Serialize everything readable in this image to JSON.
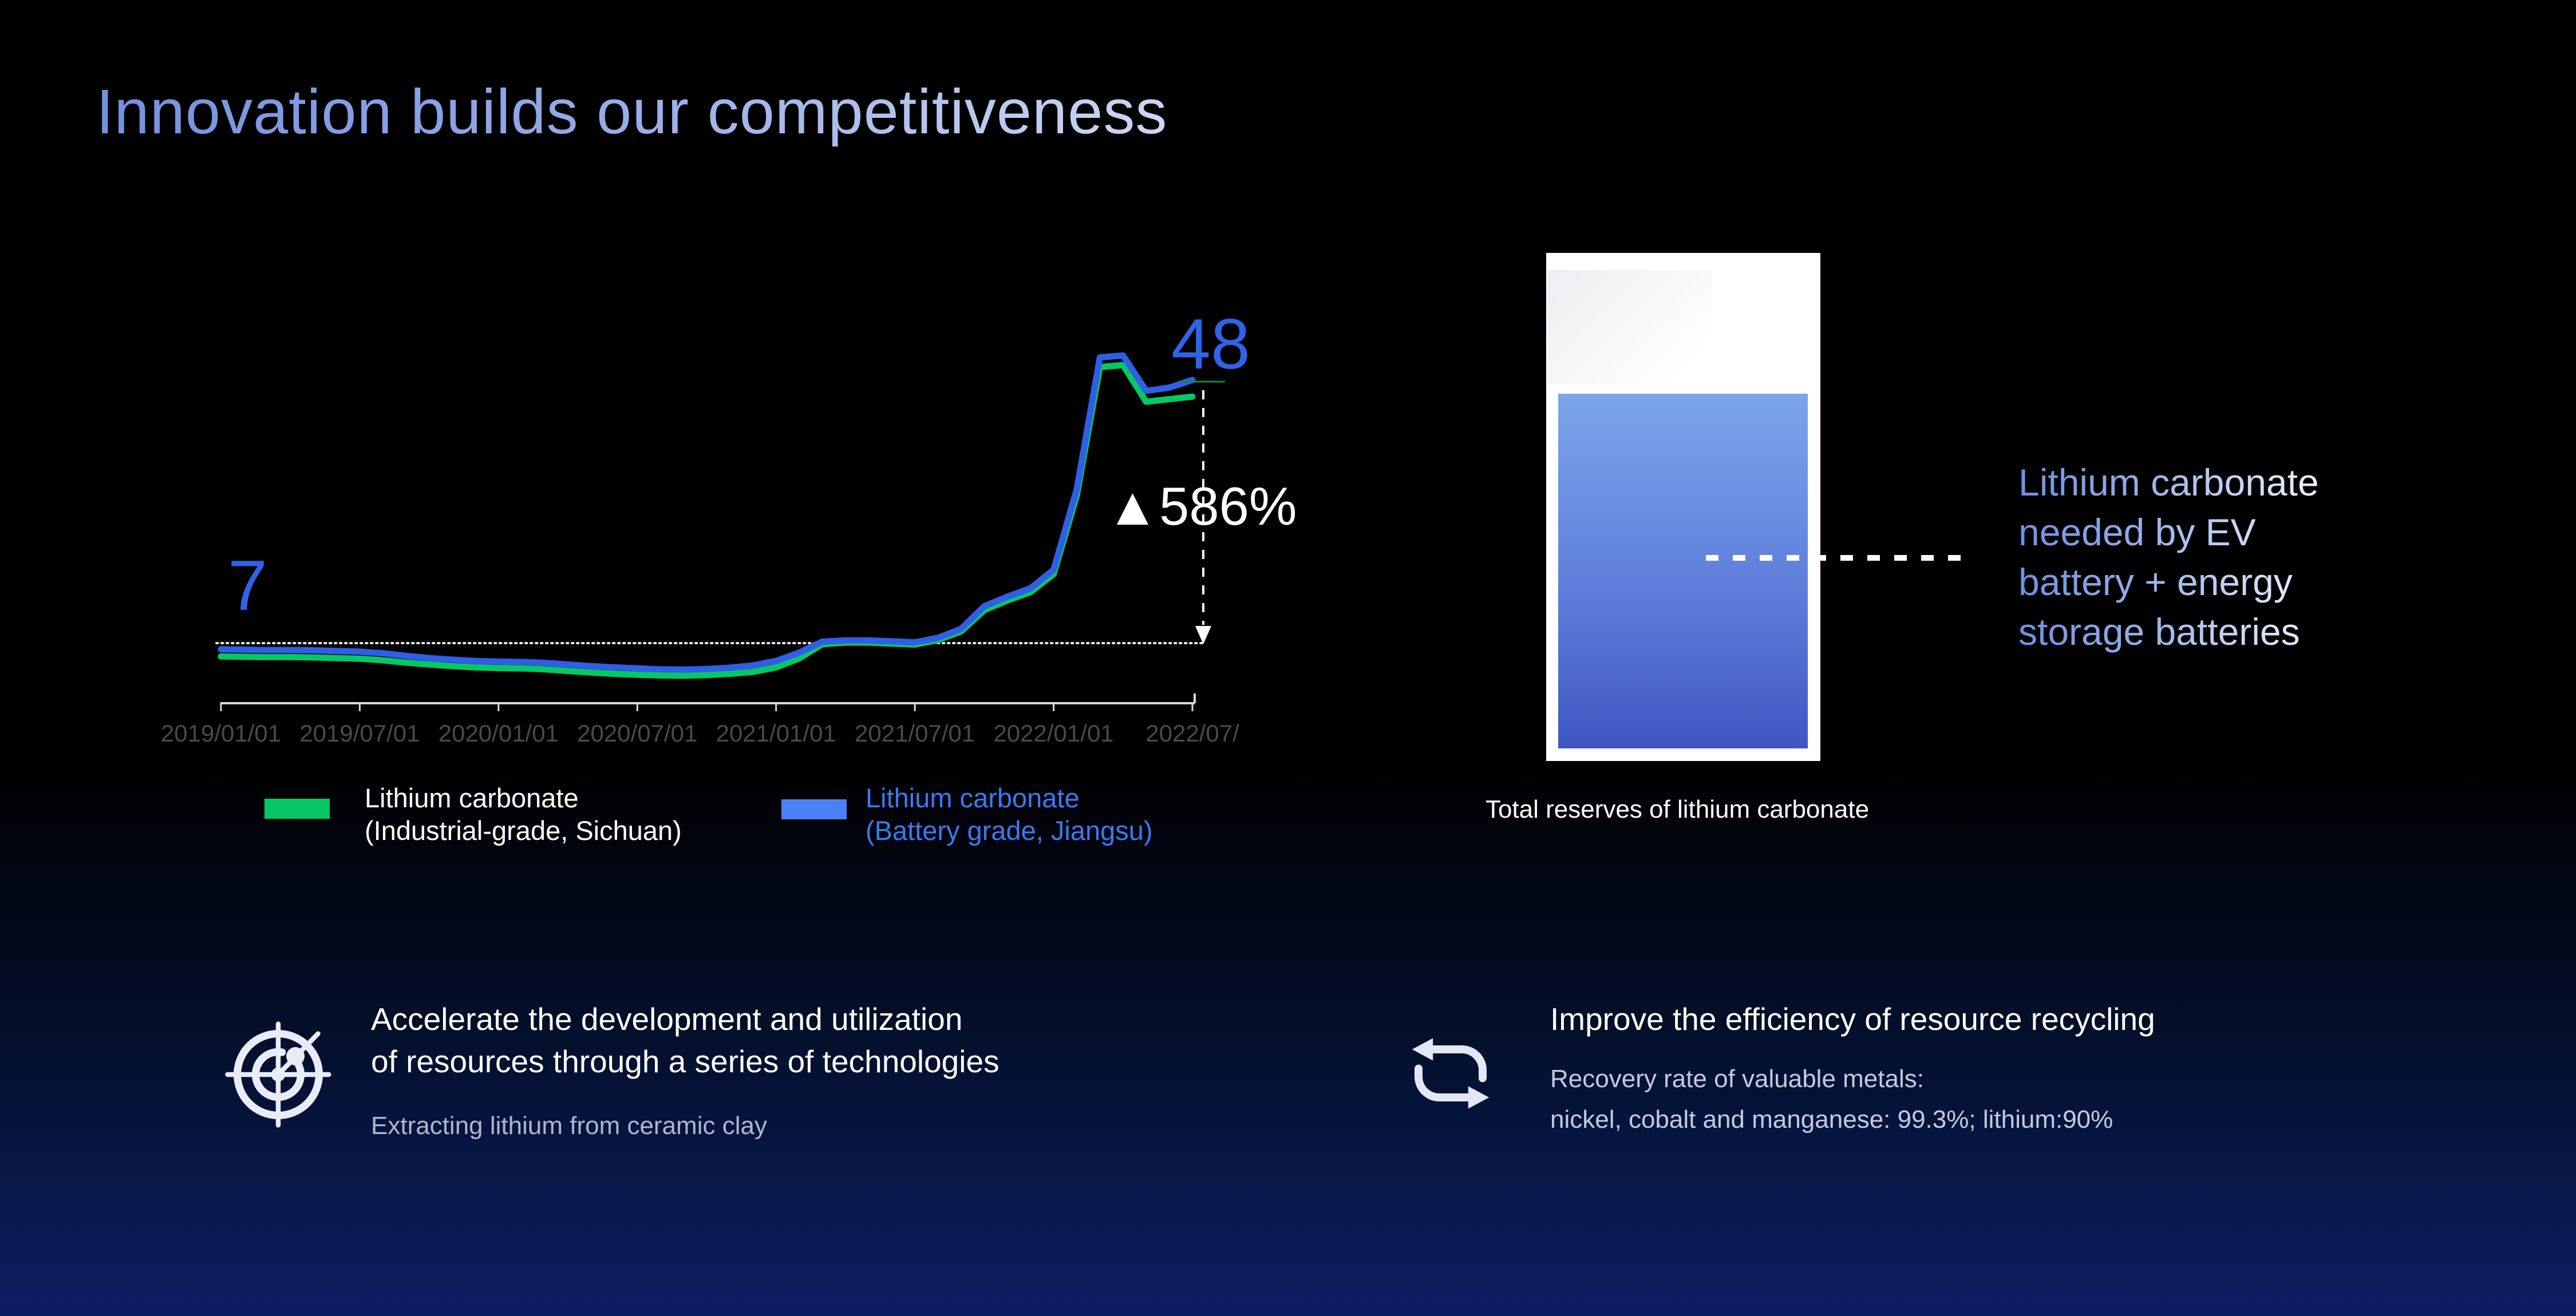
{
  "slide": {
    "title": "Innovation builds our competitiveness"
  },
  "chart_data": {
    "type": "line",
    "title": "Lithium carbonate price trend 2019-2022",
    "x_tick_labels": [
      "2019/01/01",
      "2019/07/01",
      "2020/01/01",
      "2020/07/01",
      "2021/01/01",
      "2021/07/01",
      "2022/01/01",
      "2022/07/"
    ],
    "x_unit": "month",
    "x_range_months": 42,
    "ylim": [
      0,
      55
    ],
    "grid": false,
    "baseline_value": 7,
    "annotations": {
      "start_value": "7",
      "end_value": "48",
      "change": "▲586%"
    },
    "series": [
      {
        "name": "Lithium carbonate (Industrial-grade, Sichuan)",
        "color": "#06c765",
        "values": [
          5.0,
          4.95,
          4.9,
          4.9,
          4.85,
          4.75,
          4.65,
          4.4,
          4.05,
          3.75,
          3.5,
          3.3,
          3.2,
          3.15,
          3.0,
          2.75,
          2.5,
          2.3,
          2.15,
          2.05,
          2.0,
          2.1,
          2.3,
          2.6,
          3.3,
          4.7,
          6.9,
          7.15,
          7.15,
          7.0,
          6.85,
          7.55,
          8.9,
          12.2,
          13.7,
          15.0,
          17.8,
          30.0,
          50.0,
          50.3,
          44.6,
          45.0,
          45.4
        ]
      },
      {
        "name": "Lithium carbonate (Battery grade, Jiangsu)",
        "color": "#2e5fe6",
        "values": [
          6.1,
          6.05,
          6.0,
          6.0,
          5.95,
          5.85,
          5.75,
          5.5,
          5.1,
          4.75,
          4.5,
          4.3,
          4.2,
          4.15,
          4.0,
          3.75,
          3.5,
          3.3,
          3.15,
          3.0,
          2.95,
          3.05,
          3.25,
          3.6,
          4.3,
          5.6,
          7.3,
          7.5,
          7.5,
          7.35,
          7.2,
          7.9,
          9.3,
          12.8,
          14.3,
          15.6,
          18.5,
          31.0,
          51.5,
          51.8,
          46.3,
          46.8,
          48.0
        ]
      }
    ],
    "legend": [
      {
        "swatch_color": "#06c765",
        "text_color": "#ffffff",
        "label_lines": [
          "Lithium carbonate",
          "(Industrial-grade, Sichuan)"
        ]
      },
      {
        "swatch_color": "#4a80f8",
        "text_color": "#3a7af2",
        "label_lines": [
          "Lithium carbonate",
          "(Battery grade, Jiangsu)"
        ]
      }
    ],
    "axis_color": "#d9d9d9",
    "tick_label_color": "#4a4a4a",
    "legend_position": "bottom"
  },
  "reserves": {
    "caption": "Total reserves of lithium carbonate",
    "label_lines": [
      "Lithium carbonate",
      "needed by EV",
      "battery + energy",
      "storage batteries"
    ],
    "fill_top_color": "#7ba6ea",
    "fill_bottom_color": "#3f56c2"
  },
  "highlights": [
    {
      "icon": "radar",
      "title_lines": [
        "Accelerate the development and utilization",
        "of resources through a series of technologies"
      ],
      "sub_lines": [
        "Extracting lithium from ceramic clay"
      ]
    },
    {
      "icon": "recycle",
      "title_lines": [
        "Improve the efficiency of resource recycling"
      ],
      "sub_lines": [
        "Recovery rate of valuable metals:",
        "nickel, cobalt and  manganese: 99.3%; lithium:90%"
      ]
    }
  ]
}
